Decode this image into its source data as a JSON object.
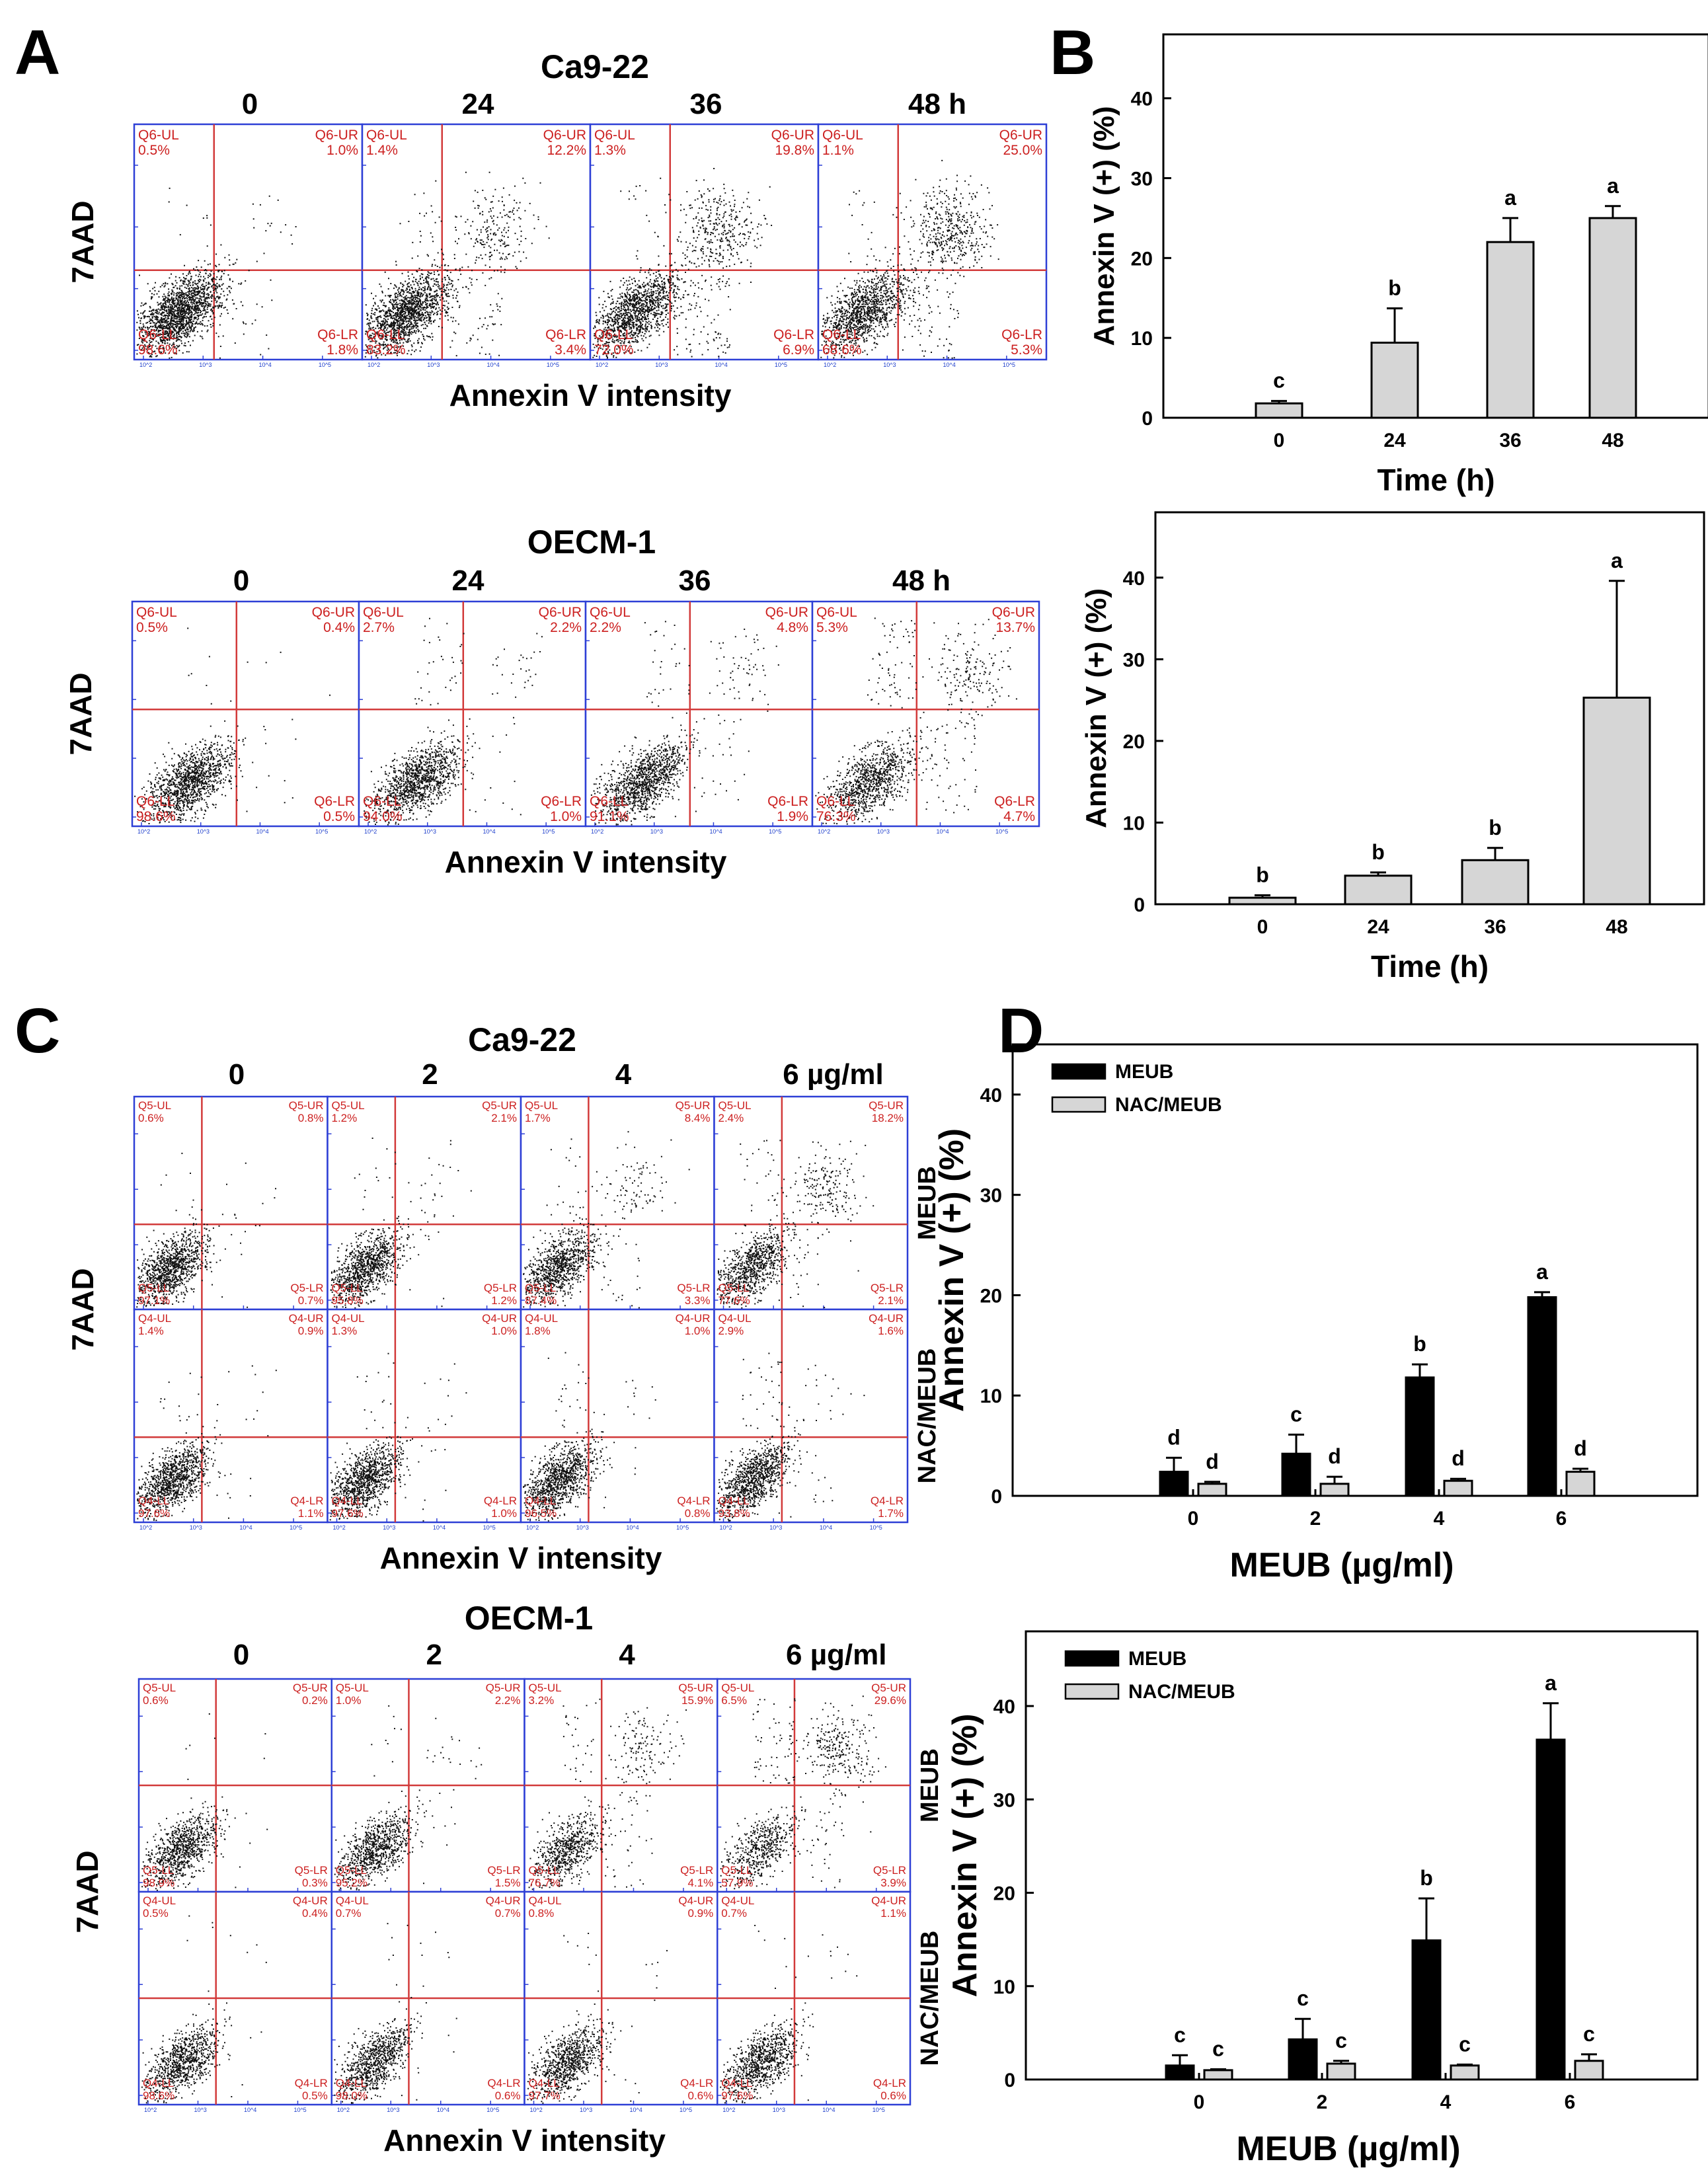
{
  "colors": {
    "flow_border": "#2d3fd6",
    "gate_line": "#d23a3a",
    "quadrant_text": "#cc2020",
    "dot": "#111111",
    "bar_gray": "#d6d6d6",
    "bar_black": "#000000",
    "axis": "#000000"
  },
  "panel_letters": [
    "A",
    "B",
    "C",
    "D"
  ],
  "flow_groups": {
    "A_ca922": {
      "title": "Ca9-22",
      "col_labels": [
        "0",
        "24",
        "36",
        "48 h"
      ],
      "ylabel": "7AAD",
      "xlabel": "Annexin V intensity",
      "rows": [
        {
          "cells": [
            {
              "ul": "Q6-UL",
              "ul_v": "0.5%",
              "ur": "Q6-UR",
              "ur_v": "1.0%",
              "ll": "Q6-LL",
              "ll_v": "98.6%",
              "lr": "Q6-LR",
              "lr_v": "1.8%"
            },
            {
              "ul": "Q6-UL",
              "ul_v": "1.4%",
              "ur": "Q6-UR",
              "ur_v": "12.2%",
              "ll": "Q6-LL",
              "ll_v": "83.2%",
              "lr": "Q6-LR",
              "lr_v": "3.4%"
            },
            {
              "ul": "Q6-UL",
              "ul_v": "1.3%",
              "ur": "Q6-UR",
              "ur_v": "19.8%",
              "ll": "Q6-LL",
              "ll_v": "72.0%",
              "lr": "Q6-LR",
              "lr_v": "6.9%"
            },
            {
              "ul": "Q6-UL",
              "ul_v": "1.1%",
              "ur": "Q6-UR",
              "ur_v": "25.0%",
              "ll": "Q6-LL",
              "ll_v": "68.6%",
              "lr": "Q6-LR",
              "lr_v": "5.3%"
            }
          ]
        }
      ]
    },
    "A_oecm1": {
      "title": "OECM-1",
      "col_labels": [
        "0",
        "24",
        "36",
        "48 h"
      ],
      "ylabel": "7AAD",
      "xlabel": "Annexin V intensity",
      "rows": [
        {
          "cells": [
            {
              "ul": "Q6-UL",
              "ul_v": "0.5%",
              "ur": "Q6-UR",
              "ur_v": "0.4%",
              "ll": "Q6-LL",
              "ll_v": "98.6%",
              "lr": "Q6-LR",
              "lr_v": "0.5%"
            },
            {
              "ul": "Q6-UL",
              "ul_v": "2.7%",
              "ur": "Q6-UR",
              "ur_v": "2.2%",
              "ll": "Q6-LL",
              "ll_v": "94.0%",
              "lr": "Q6-LR",
              "lr_v": "1.0%"
            },
            {
              "ul": "Q6-UL",
              "ul_v": "2.2%",
              "ur": "Q6-UR",
              "ur_v": "4.8%",
              "ll": "Q6-LL",
              "ll_v": "91.1%",
              "lr": "Q6-LR",
              "lr_v": "1.9%"
            },
            {
              "ul": "Q6-UL",
              "ul_v": "5.3%",
              "ur": "Q6-UR",
              "ur_v": "13.7%",
              "ll": "Q6-LL",
              "ll_v": "76.3%",
              "lr": "Q6-LR",
              "lr_v": "4.7%"
            }
          ]
        }
      ]
    },
    "C_ca922": {
      "title": "Ca9-22",
      "col_labels": [
        "0",
        "2",
        "4",
        "6 µg/ml"
      ],
      "row_labels": [
        "MEUB",
        "NAC/MEUB"
      ],
      "ylabel": "7AAD",
      "xlabel": "Annexin V intensity",
      "rows": [
        {
          "cells": [
            {
              "ul": "Q5-UL",
              "ul_v": "0.6%",
              "ur": "Q5-UR",
              "ur_v": "0.8%",
              "ll": "Q5-LL",
              "ll_v": "97.1%",
              "lr": "Q5-LR",
              "lr_v": "0.7%"
            },
            {
              "ul": "Q5-UL",
              "ul_v": "1.2%",
              "ur": "Q5-UR",
              "ur_v": "2.1%",
              "ll": "Q5-LL",
              "ll_v": "95.8%",
              "lr": "Q5-LR",
              "lr_v": "1.2%"
            },
            {
              "ul": "Q5-UL",
              "ul_v": "1.7%",
              "ur": "Q5-UR",
              "ur_v": "8.4%",
              "ll": "Q5-LL",
              "ll_v": "87.4%",
              "lr": "Q5-LR",
              "lr_v": "3.3%"
            },
            {
              "ul": "Q5-UL",
              "ul_v": "2.4%",
              "ur": "Q5-UR",
              "ur_v": "18.2%",
              "ll": "Q5-LL",
              "ll_v": "77.6%",
              "lr": "Q5-LR",
              "lr_v": "2.1%"
            }
          ]
        },
        {
          "cells": [
            {
              "ul": "Q4-UL",
              "ul_v": "1.4%",
              "ur": "Q4-UR",
              "ur_v": "0.9%",
              "ll": "Q4-LL",
              "ll_v": "97.6%",
              "lr": "Q4-LR",
              "lr_v": "1.1%"
            },
            {
              "ul": "Q4-UL",
              "ul_v": "1.3%",
              "ur": "Q4-UR",
              "ur_v": "1.0%",
              "ll": "Q4-LL",
              "ll_v": "97.6%",
              "lr": "Q4-LR",
              "lr_v": "1.0%"
            },
            {
              "ul": "Q4-UL",
              "ul_v": "1.8%",
              "ur": "Q4-UR",
              "ur_v": "1.0%",
              "ll": "Q4-LL",
              "ll_v": "96.5%",
              "lr": "Q4-LR",
              "lr_v": "0.8%"
            },
            {
              "ul": "Q4-UL",
              "ul_v": "2.9%",
              "ur": "Q4-UR",
              "ur_v": "1.6%",
              "ll": "Q4-LL",
              "ll_v": "93.8%",
              "lr": "Q4-LR",
              "lr_v": "1.7%"
            }
          ]
        }
      ]
    },
    "C_oecm1": {
      "title": "OECM-1",
      "col_labels": [
        "0",
        "2",
        "4",
        "6 µg/ml"
      ],
      "row_labels": [
        "MEUB",
        "NAC/MEUB"
      ],
      "ylabel": "7AAD",
      "xlabel": "Annexin V intensity",
      "rows": [
        {
          "cells": [
            {
              "ul": "Q5-UL",
              "ul_v": "0.6%",
              "ur": "Q5-UR",
              "ur_v": "0.2%",
              "ll": "Q5-LL",
              "ll_v": "98.9%",
              "lr": "Q5-LR",
              "lr_v": "0.3%"
            },
            {
              "ul": "Q5-UL",
              "ul_v": "1.0%",
              "ur": "Q5-UR",
              "ur_v": "2.2%",
              "ll": "Q5-LL",
              "ll_v": "95.2%",
              "lr": "Q5-LR",
              "lr_v": "1.5%"
            },
            {
              "ul": "Q5-UL",
              "ul_v": "3.2%",
              "ur": "Q5-UR",
              "ur_v": "15.9%",
              "ll": "Q5-LL",
              "ll_v": "76.7%",
              "lr": "Q5-LR",
              "lr_v": "4.1%"
            },
            {
              "ul": "Q5-UL",
              "ul_v": "6.5%",
              "ur": "Q5-UR",
              "ur_v": "29.6%",
              "ll": "Q5-LL",
              "ll_v": "57.9%",
              "lr": "Q5-LR",
              "lr_v": "3.9%"
            }
          ]
        },
        {
          "cells": [
            {
              "ul": "Q4-UL",
              "ul_v": "0.5%",
              "ur": "Q4-UR",
              "ur_v": "0.4%",
              "ll": "Q4-LL",
              "ll_v": "98.6%",
              "lr": "Q4-LR",
              "lr_v": "0.5%"
            },
            {
              "ul": "Q4-UL",
              "ul_v": "0.7%",
              "ur": "Q4-UR",
              "ur_v": "0.7%",
              "ll": "Q4-LL",
              "ll_v": "98.0%",
              "lr": "Q4-LR",
              "lr_v": "0.6%"
            },
            {
              "ul": "Q4-UL",
              "ul_v": "0.8%",
              "ur": "Q4-UR",
              "ur_v": "0.9%",
              "ll": "Q4-LL",
              "ll_v": "97.7%",
              "lr": "Q4-LR",
              "lr_v": "0.6%"
            },
            {
              "ul": "Q4-UL",
              "ul_v": "0.7%",
              "ur": "Q4-UR",
              "ur_v": "1.1%",
              "ll": "Q4-LL",
              "ll_v": "97.6%",
              "lr": "Q4-LR",
              "lr_v": "0.6%"
            }
          ]
        }
      ]
    }
  },
  "flow_axis_tick_labels": [
    "10^2",
    "10^3",
    "10^4",
    "10^5"
  ],
  "chart_data": [
    {
      "id": "B_top",
      "type": "bar",
      "categories": [
        "0",
        "24",
        "36",
        "48"
      ],
      "series": [
        {
          "name": "Annexin V (+)",
          "values": [
            1.8,
            9.4,
            22.0,
            25.0
          ],
          "errors": [
            0.3,
            4.3,
            3.0,
            1.5
          ],
          "letters": [
            "c",
            "b",
            "a",
            "a"
          ]
        }
      ],
      "xlabel": "Time (h)",
      "ylabel": "Annexin V (+) (%)",
      "ylim": [
        0,
        48
      ],
      "yticks": [
        0,
        10,
        20,
        30,
        40
      ],
      "legend": false
    },
    {
      "id": "B_bottom",
      "type": "bar",
      "categories": [
        "0",
        "24",
        "36",
        "48"
      ],
      "series": [
        {
          "name": "Annexin V (+)",
          "values": [
            0.8,
            3.5,
            5.4,
            25.3
          ],
          "errors": [
            0.3,
            0.4,
            1.5,
            14.3
          ],
          "letters": [
            "b",
            "b",
            "b",
            "a"
          ]
        }
      ],
      "xlabel": "Time (h)",
      "ylabel": "Annexin V (+) (%)",
      "ylim": [
        0,
        48
      ],
      "yticks": [
        0,
        10,
        20,
        30,
        40
      ],
      "legend": false
    },
    {
      "id": "D_top",
      "type": "bar",
      "categories": [
        "0",
        "2",
        "4",
        "6"
      ],
      "series": [
        {
          "name": "MEUB",
          "values": [
            2.4,
            4.2,
            11.8,
            19.8
          ],
          "errors": [
            1.4,
            1.9,
            1.3,
            0.5
          ],
          "letters": [
            "d",
            "c",
            "b",
            "a"
          ]
        },
        {
          "name": "NAC/MEUB",
          "values": [
            1.2,
            1.2,
            1.5,
            2.4
          ],
          "errors": [
            0.2,
            0.7,
            0.2,
            0.3
          ],
          "letters": [
            "d",
            "d",
            "d",
            "d"
          ]
        }
      ],
      "xlabel": "MEUB (µg/ml)",
      "ylabel": "Annexin V (+) (%)",
      "ylim": [
        0,
        45
      ],
      "yticks": [
        0,
        10,
        20,
        30,
        40
      ],
      "legend": "top-left"
    },
    {
      "id": "D_bottom",
      "type": "bar",
      "categories": [
        "0",
        "2",
        "4",
        "6"
      ],
      "series": [
        {
          "name": "MEUB",
          "values": [
            1.5,
            4.3,
            14.9,
            36.4
          ],
          "errors": [
            1.1,
            2.2,
            4.5,
            3.9
          ],
          "letters": [
            "c",
            "c",
            "b",
            "a"
          ]
        },
        {
          "name": "NAC/MEUB",
          "values": [
            1.0,
            1.7,
            1.5,
            2.0
          ],
          "errors": [
            0.1,
            0.3,
            0.1,
            0.7
          ],
          "letters": [
            "c",
            "c",
            "c",
            "c"
          ]
        }
      ],
      "xlabel": "MEUB (µg/ml)",
      "ylabel": "Annexin V (+) (%)",
      "ylim": [
        0,
        48
      ],
      "yticks": [
        0,
        10,
        20,
        30,
        40
      ],
      "legend": "top-left"
    }
  ]
}
